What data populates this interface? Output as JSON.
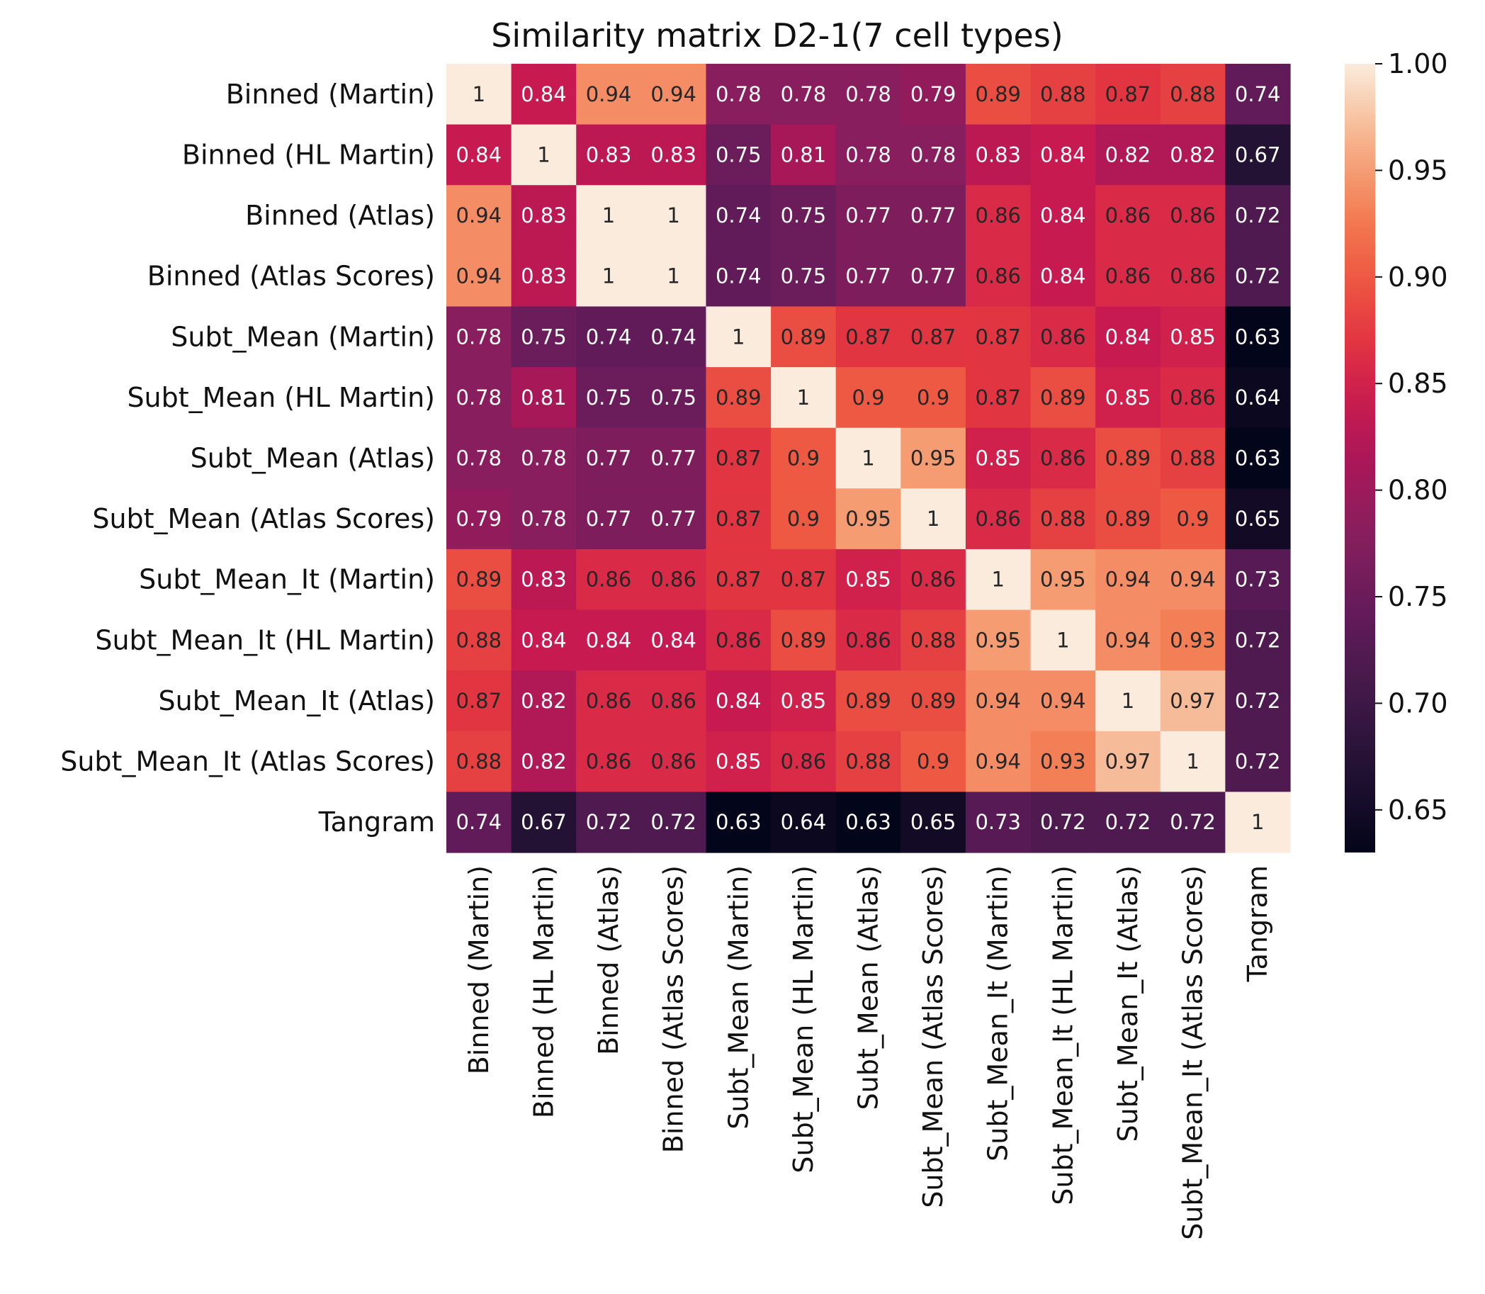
{
  "chart_data": {
    "type": "heatmap",
    "title": "Similarity matrix D2-1(7 cell types)",
    "row_labels": [
      "Binned (Martin)",
      "Binned (HL Martin)",
      "Binned (Atlas)",
      "Binned (Atlas Scores)",
      "Subt_Mean (Martin)",
      "Subt_Mean (HL Martin)",
      "Subt_Mean (Atlas)",
      "Subt_Mean (Atlas Scores)",
      "Subt_Mean_It (Martin)",
      "Subt_Mean_It (HL Martin)",
      "Subt_Mean_It (Atlas)",
      "Subt_Mean_It (Atlas Scores)",
      "Tangram"
    ],
    "col_labels": [
      "Binned (Martin)",
      "Binned (HL Martin)",
      "Binned (Atlas)",
      "Binned (Atlas Scores)",
      "Subt_Mean (Martin)",
      "Subt_Mean (HL Martin)",
      "Subt_Mean (Atlas)",
      "Subt_Mean (Atlas Scores)",
      "Subt_Mean_It (Martin)",
      "Subt_Mean_It (HL Martin)",
      "Subt_Mean_It (Atlas)",
      "Subt_Mean_It (Atlas Scores)",
      "Tangram"
    ],
    "values": [
      [
        1,
        0.84,
        0.94,
        0.94,
        0.78,
        0.78,
        0.78,
        0.79,
        0.89,
        0.88,
        0.87,
        0.88,
        0.74
      ],
      [
        0.84,
        1,
        0.83,
        0.83,
        0.75,
        0.81,
        0.78,
        0.78,
        0.83,
        0.84,
        0.82,
        0.82,
        0.67
      ],
      [
        0.94,
        0.83,
        1,
        1,
        0.74,
        0.75,
        0.77,
        0.77,
        0.86,
        0.84,
        0.86,
        0.86,
        0.72
      ],
      [
        0.94,
        0.83,
        1,
        1,
        0.74,
        0.75,
        0.77,
        0.77,
        0.86,
        0.84,
        0.86,
        0.86,
        0.72
      ],
      [
        0.78,
        0.75,
        0.74,
        0.74,
        1,
        0.89,
        0.87,
        0.87,
        0.87,
        0.86,
        0.84,
        0.85,
        0.63
      ],
      [
        0.78,
        0.81,
        0.75,
        0.75,
        0.89,
        1,
        0.9,
        0.9,
        0.87,
        0.89,
        0.85,
        0.86,
        0.64
      ],
      [
        0.78,
        0.78,
        0.77,
        0.77,
        0.87,
        0.9,
        1,
        0.95,
        0.85,
        0.86,
        0.89,
        0.88,
        0.63
      ],
      [
        0.79,
        0.78,
        0.77,
        0.77,
        0.87,
        0.9,
        0.95,
        1,
        0.86,
        0.88,
        0.89,
        0.9,
        0.65
      ],
      [
        0.89,
        0.83,
        0.86,
        0.86,
        0.87,
        0.87,
        0.85,
        0.86,
        1,
        0.95,
        0.94,
        0.94,
        0.73
      ],
      [
        0.88,
        0.84,
        0.84,
        0.84,
        0.86,
        0.89,
        0.86,
        0.88,
        0.95,
        1,
        0.94,
        0.93,
        0.72
      ],
      [
        0.87,
        0.82,
        0.86,
        0.86,
        0.84,
        0.85,
        0.89,
        0.89,
        0.94,
        0.94,
        1,
        0.97,
        0.72
      ],
      [
        0.88,
        0.82,
        0.86,
        0.86,
        0.85,
        0.86,
        0.88,
        0.9,
        0.94,
        0.93,
        0.97,
        1,
        0.72
      ],
      [
        0.74,
        0.67,
        0.72,
        0.72,
        0.63,
        0.64,
        0.63,
        0.65,
        0.73,
        0.72,
        0.72,
        0.72,
        1
      ]
    ],
    "colorbar": {
      "colormap": "rocket",
      "range": [
        0.63,
        1.0
      ],
      "ticks": [
        "0.65",
        "0.70",
        "0.75",
        "0.80",
        "0.85",
        "0.90",
        "0.95",
        "1.00"
      ]
    },
    "annotations": "cell values shown"
  }
}
